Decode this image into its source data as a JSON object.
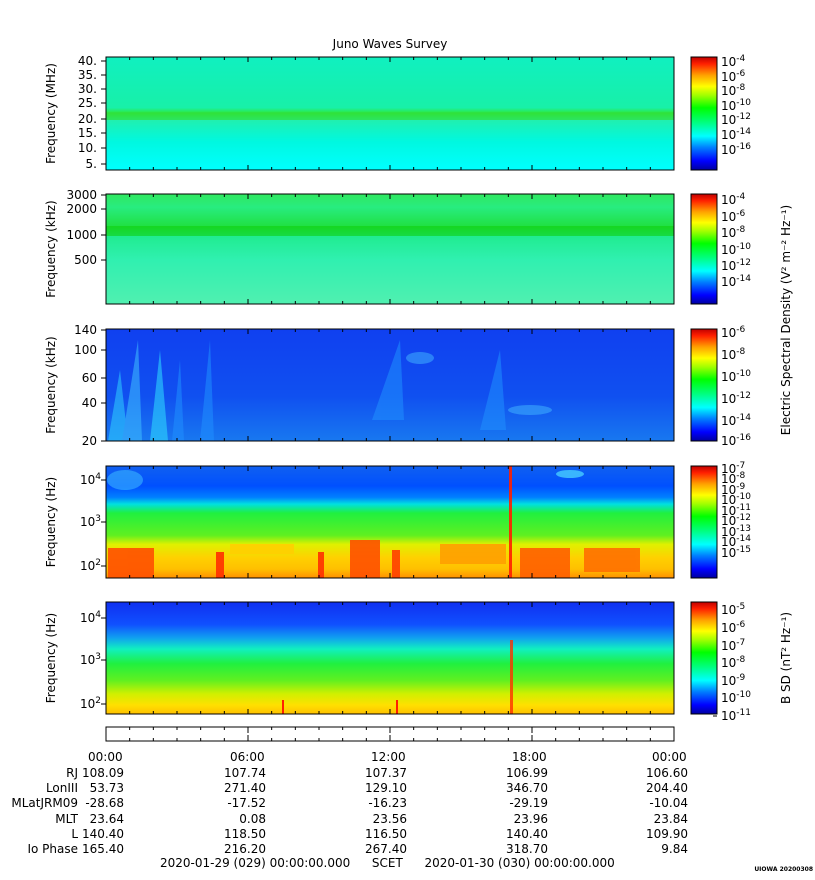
{
  "title": "Juno Waves Survey",
  "colors": {
    "scale": [
      "#0000a0",
      "#0000ff",
      "#0060ff",
      "#00c0ff",
      "#00ffff",
      "#00ff80",
      "#00ff00",
      "#80ff00",
      "#ffff00",
      "#ffc000",
      "#ff6000",
      "#ff0000",
      "#c00000"
    ]
  },
  "chart_data": [
    {
      "type": "heatmap",
      "ylabel": "Frequency (MHz)",
      "yticks": [
        "40.",
        "35.",
        "30.",
        "25.",
        "20.",
        "15.",
        "10.",
        "5."
      ],
      "colorbar_ticks": [
        "-4",
        "-6",
        "-8",
        "-10",
        "-12",
        "-14",
        "-16"
      ],
      "colorbar_base": "10"
    },
    {
      "type": "heatmap",
      "ylabel": "Frequency (kHz)",
      "yticks": [
        "3000",
        "2000",
        "1000",
        "500"
      ],
      "colorbar_ticks": [
        "-4",
        "-6",
        "-8",
        "-10",
        "-12",
        "-14"
      ],
      "colorbar_base": "10"
    },
    {
      "type": "heatmap",
      "ylabel": "Frequency (kHz)",
      "yticks": [
        "140",
        "100",
        "60",
        "40",
        "20"
      ],
      "colorbar_ticks": [
        "-6",
        "-8",
        "-10",
        "-12",
        "-14",
        "-16"
      ],
      "colorbar_base": "10"
    },
    {
      "type": "heatmap",
      "ylabel": "Frequency (Hz)",
      "yticks": [
        "4",
        "3",
        "2"
      ],
      "colorbar_ticks": [
        "-7",
        "-8",
        "-9",
        "-10",
        "-11",
        "-12",
        "-13",
        "-14",
        "-15"
      ],
      "colorbar_base": "10"
    },
    {
      "type": "heatmap",
      "ylabel": "Frequency (Hz)",
      "yticks": [
        "4",
        "3",
        "2"
      ],
      "colorbar_ticks": [
        "-5",
        "-6",
        "-7",
        "-8",
        "-9",
        "-10",
        "-11"
      ],
      "colorbar_base": "10"
    }
  ],
  "colorbar_labels": {
    "electric": "Electric Spectral Density (V² m⁻² Hz⁻¹)",
    "magnetic": "B SD (nT² Hz⁻¹)"
  },
  "ephemeris": {
    "time_ticks": [
      "00:00",
      "06:00",
      "12:00",
      "18:00",
      "00:00"
    ],
    "rows": [
      {
        "label": "RJ",
        "values": [
          "108.09",
          "107.74",
          "107.37",
          "106.99",
          "106.60"
        ]
      },
      {
        "label": "LonIII",
        "values": [
          "53.73",
          "271.40",
          "129.10",
          "346.70",
          "204.40"
        ]
      },
      {
        "label": "MLatJRM09",
        "values": [
          "-28.68",
          "-17.52",
          "-16.23",
          "-29.19",
          "-10.04"
        ]
      },
      {
        "label": "MLT",
        "values": [
          "23.64",
          "0.08",
          "23.56",
          "23.96",
          "23.84"
        ]
      },
      {
        "label": "L",
        "values": [
          "140.40",
          "118.50",
          "116.50",
          "140.40",
          "109.90"
        ]
      },
      {
        "label": "Io Phase",
        "values": [
          "165.40",
          "216.20",
          "267.40",
          "318.70",
          "9.84"
        ]
      }
    ]
  },
  "footer": {
    "start": "2020-01-29 (029) 00:00:00.000",
    "middle": "SCET",
    "end": "2020-01-30 (030) 00:00:00.000"
  },
  "stamp": "UIOWA 20200308"
}
